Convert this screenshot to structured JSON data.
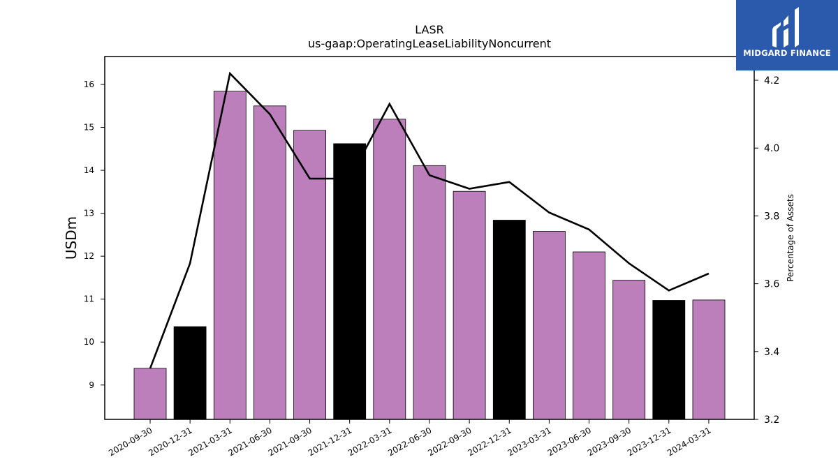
{
  "brand": {
    "logo_text": "MIDGARD FINANCE"
  },
  "chart_data": {
    "type": "bar",
    "title": "LASR",
    "subtitle": "us-gaap:OperatingLeaseLiabilityNoncurrent",
    "ylabel": "USDm",
    "y2label": "Percentage of Assets",
    "ylim": [
      8.2,
      16.65
    ],
    "y2lim": [
      3.2,
      4.27
    ],
    "yticks": [
      9,
      10,
      11,
      12,
      13,
      14,
      15,
      16
    ],
    "y2ticks": [
      3.2,
      3.4,
      3.6,
      3.8,
      4.0,
      4.2
    ],
    "categories": [
      "2020-09-30",
      "2020-12-31",
      "2021-03-31",
      "2021-06-30",
      "2021-09-30",
      "2021-12-31",
      "2022-03-31",
      "2022-06-30",
      "2022-09-30",
      "2022-12-31",
      "2023-03-31",
      "2023-06-30",
      "2023-09-30",
      "2023-12-31",
      "2024-03-31"
    ],
    "series": [
      {
        "type": "bar",
        "axis": "left",
        "values": [
          9.39,
          10.36,
          15.84,
          15.5,
          14.93,
          14.62,
          15.19,
          14.11,
          13.51,
          12.84,
          12.58,
          12.1,
          11.44,
          10.97,
          10.98
        ],
        "colors": [
          "#bc7fbc",
          "#000000",
          "#bc7fbc",
          "#bc7fbc",
          "#bc7fbc",
          "#000000",
          "#bc7fbc",
          "#bc7fbc",
          "#bc7fbc",
          "#000000",
          "#bc7fbc",
          "#bc7fbc",
          "#bc7fbc",
          "#000000",
          "#bc7fbc"
        ]
      },
      {
        "type": "line",
        "axis": "right",
        "color": "#000000",
        "values": [
          3.35,
          3.66,
          4.22,
          4.1,
          3.91,
          3.91,
          4.13,
          3.92,
          3.88,
          3.9,
          3.81,
          3.76,
          3.66,
          3.58,
          3.63
        ]
      }
    ],
    "grid": false,
    "legend": "none"
  }
}
